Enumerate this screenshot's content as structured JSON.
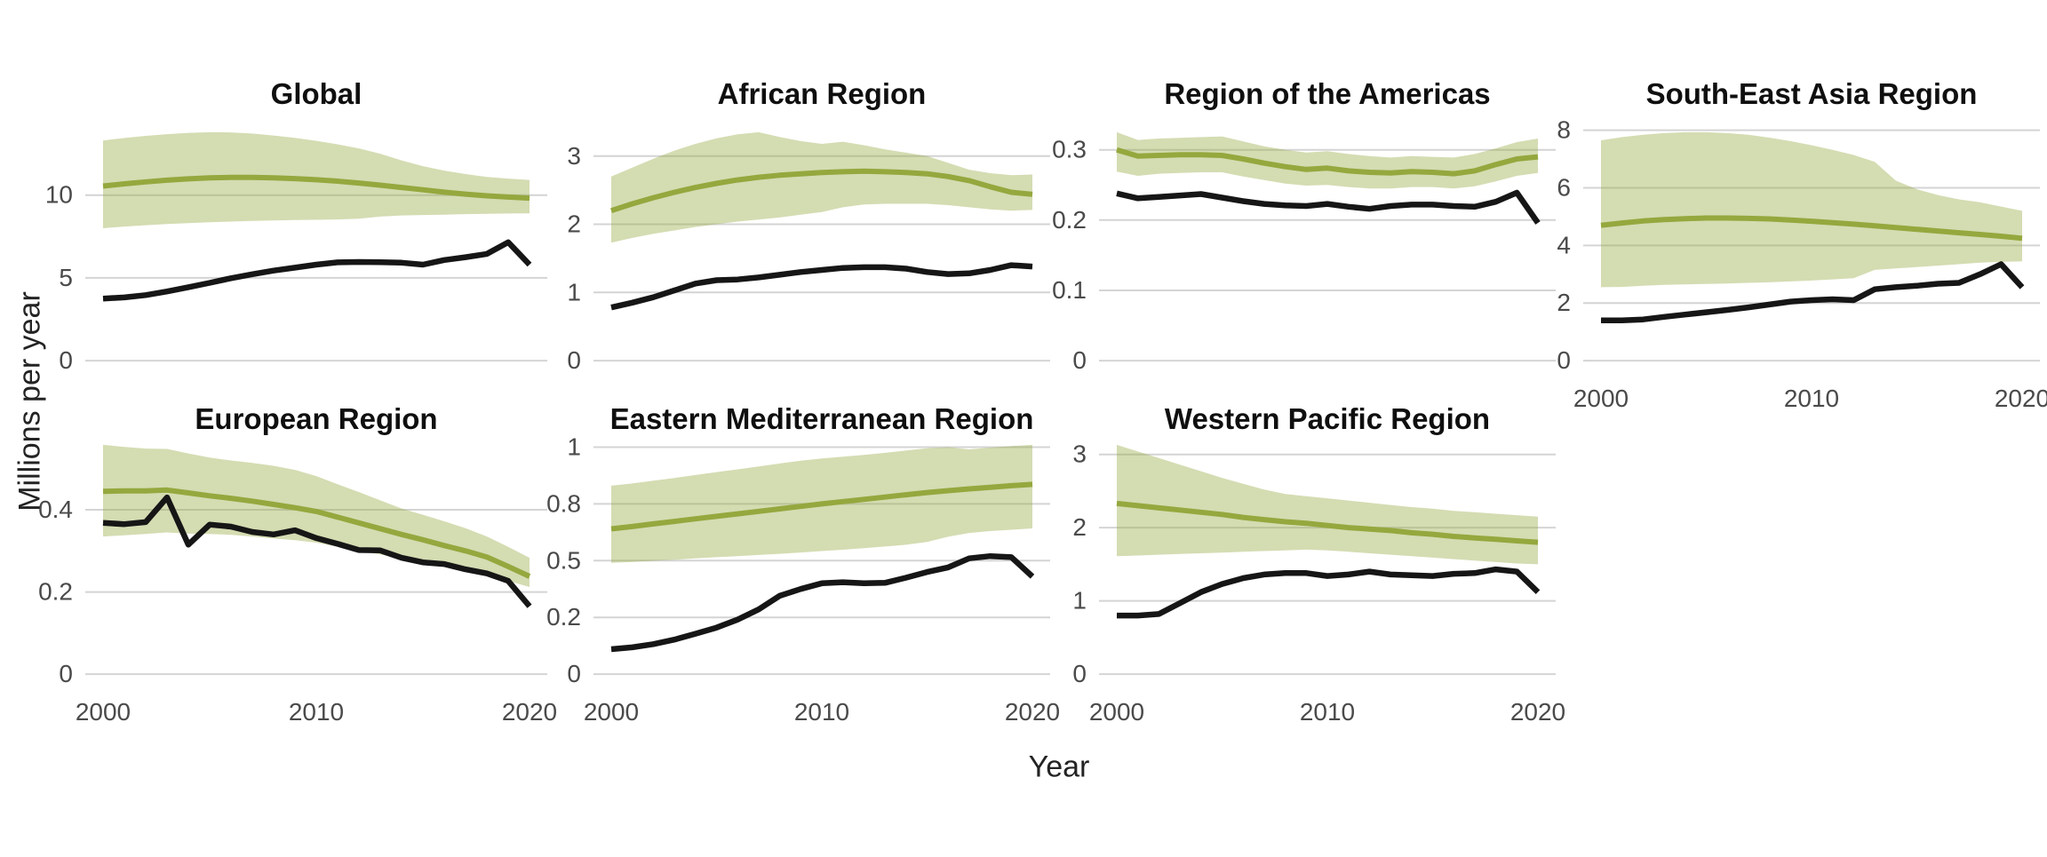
{
  "figure": {
    "ylabel": "Millions per year",
    "xlabel": "Year",
    "colors": {
      "estimate_line": "#94a83e",
      "estimate_band": "rgba(148,168,62,0.40)",
      "observed_line": "#161616",
      "gridline": "#d4d4d4",
      "tick_text": "#4a4a4a",
      "title_text": "#0f0f0f"
    }
  },
  "chart_data": [
    {
      "type": "line",
      "title": "Global",
      "x": [
        2000,
        2001,
        2002,
        2003,
        2004,
        2005,
        2006,
        2007,
        2008,
        2009,
        2010,
        2011,
        2012,
        2013,
        2014,
        2015,
        2016,
        2017,
        2018,
        2019,
        2020
      ],
      "series": [
        {
          "name": "estimate_central",
          "values": [
            10.55,
            10.68,
            10.8,
            10.9,
            10.98,
            11.04,
            11.07,
            11.07,
            11.04,
            11.0,
            10.93,
            10.84,
            10.73,
            10.6,
            10.46,
            10.32,
            10.18,
            10.06,
            9.96,
            9.88,
            9.82
          ]
        },
        {
          "name": "estimate_upper",
          "values": [
            13.3,
            13.45,
            13.58,
            13.68,
            13.76,
            13.8,
            13.79,
            13.72,
            13.6,
            13.46,
            13.28,
            13.07,
            12.82,
            12.5,
            12.1,
            11.75,
            11.48,
            11.27,
            11.1,
            11.0,
            10.92
          ]
        },
        {
          "name": "estimate_lower",
          "values": [
            8.0,
            8.1,
            8.18,
            8.25,
            8.31,
            8.36,
            8.4,
            8.44,
            8.47,
            8.5,
            8.51,
            8.53,
            8.58,
            8.7,
            8.77,
            8.8,
            8.82,
            8.85,
            8.87,
            8.89,
            8.9
          ]
        },
        {
          "name": "observed",
          "values": [
            3.75,
            3.82,
            3.96,
            4.18,
            4.44,
            4.7,
            4.98,
            5.22,
            5.44,
            5.62,
            5.8,
            5.94,
            5.96,
            5.95,
            5.92,
            5.8,
            6.08,
            6.25,
            6.45,
            7.15,
            5.8
          ]
        }
      ],
      "ybreaks": [
        {
          "value": 0,
          "label": "0"
        },
        {
          "value": 5,
          "label": "5"
        },
        {
          "value": 10,
          "label": "10"
        }
      ],
      "ylim": [
        -0.69,
        14.49
      ],
      "xticks": [
        2000,
        2010,
        2020
      ],
      "show_x_labels": false,
      "grid": "horizontal-only",
      "legend": "none"
    },
    {
      "type": "line",
      "title": "African Region",
      "x": [
        2000,
        2001,
        2002,
        2003,
        2004,
        2005,
        2006,
        2007,
        2008,
        2009,
        2010,
        2011,
        2012,
        2013,
        2014,
        2015,
        2016,
        2017,
        2018,
        2019,
        2020
      ],
      "series": [
        {
          "name": "estimate_central",
          "values": [
            2.2,
            2.3,
            2.39,
            2.47,
            2.54,
            2.6,
            2.65,
            2.69,
            2.72,
            2.74,
            2.76,
            2.77,
            2.78,
            2.77,
            2.76,
            2.74,
            2.7,
            2.64,
            2.55,
            2.47,
            2.44
          ]
        },
        {
          "name": "estimate_upper",
          "values": [
            2.7,
            2.83,
            2.96,
            3.08,
            3.18,
            3.26,
            3.32,
            3.35,
            3.28,
            3.22,
            3.18,
            3.21,
            3.16,
            3.1,
            3.05,
            3.0,
            2.9,
            2.8,
            2.75,
            2.72,
            2.73
          ]
        },
        {
          "name": "estimate_lower",
          "values": [
            1.73,
            1.8,
            1.86,
            1.91,
            1.96,
            2.0,
            2.04,
            2.07,
            2.1,
            2.14,
            2.18,
            2.25,
            2.29,
            2.3,
            2.3,
            2.3,
            2.28,
            2.25,
            2.22,
            2.2,
            2.21
          ]
        },
        {
          "name": "observed",
          "values": [
            0.78,
            0.85,
            0.93,
            1.03,
            1.13,
            1.18,
            1.19,
            1.22,
            1.26,
            1.3,
            1.33,
            1.36,
            1.37,
            1.37,
            1.35,
            1.3,
            1.27,
            1.28,
            1.33,
            1.4,
            1.38
          ]
        }
      ],
      "ybreaks": [
        {
          "value": 0,
          "label": "0"
        },
        {
          "value": 1,
          "label": "1"
        },
        {
          "value": 2,
          "label": "2"
        },
        {
          "value": 3,
          "label": "3"
        }
      ],
      "ylim": [
        -0.168,
        3.518
      ],
      "xticks": [
        2000,
        2010,
        2020
      ],
      "show_x_labels": false,
      "grid": "horizontal-only",
      "legend": "none"
    },
    {
      "type": "line",
      "title": "Region of the Americas",
      "x": [
        2000,
        2001,
        2002,
        2003,
        2004,
        2005,
        2006,
        2007,
        2008,
        2009,
        2010,
        2011,
        2012,
        2013,
        2014,
        2015,
        2016,
        2017,
        2018,
        2019,
        2020
      ],
      "series": [
        {
          "name": "estimate_central",
          "values": [
            0.3,
            0.291,
            0.292,
            0.293,
            0.293,
            0.292,
            0.287,
            0.281,
            0.276,
            0.272,
            0.274,
            0.27,
            0.268,
            0.267,
            0.269,
            0.268,
            0.266,
            0.27,
            0.279,
            0.287,
            0.29
          ]
        },
        {
          "name": "estimate_upper",
          "values": [
            0.325,
            0.314,
            0.316,
            0.317,
            0.318,
            0.319,
            0.312,
            0.305,
            0.3,
            0.296,
            0.298,
            0.294,
            0.291,
            0.289,
            0.291,
            0.29,
            0.289,
            0.294,
            0.302,
            0.311,
            0.316
          ]
        },
        {
          "name": "estimate_lower",
          "values": [
            0.269,
            0.263,
            0.266,
            0.267,
            0.268,
            0.268,
            0.262,
            0.257,
            0.252,
            0.249,
            0.25,
            0.247,
            0.245,
            0.245,
            0.247,
            0.247,
            0.245,
            0.248,
            0.255,
            0.263,
            0.267
          ]
        },
        {
          "name": "observed",
          "values": [
            0.238,
            0.231,
            0.233,
            0.235,
            0.237,
            0.232,
            0.227,
            0.223,
            0.221,
            0.22,
            0.223,
            0.219,
            0.216,
            0.22,
            0.222,
            0.222,
            0.22,
            0.219,
            0.226,
            0.239,
            0.196
          ]
        }
      ],
      "ybreaks": [
        {
          "value": 0,
          "label": "0"
        },
        {
          "value": 0.1,
          "label": "0.1"
        },
        {
          "value": 0.2,
          "label": "0.2"
        },
        {
          "value": 0.3,
          "label": "0.3"
        }
      ],
      "ylim": [
        -0.0163,
        0.3413
      ],
      "xticks": [
        2000,
        2010,
        2020
      ],
      "show_x_labels": false,
      "grid": "horizontal-only",
      "legend": "none"
    },
    {
      "type": "line",
      "title": "South-East Asia Region",
      "x": [
        2000,
        2001,
        2002,
        2003,
        2004,
        2005,
        2006,
        2007,
        2008,
        2009,
        2010,
        2011,
        2012,
        2013,
        2014,
        2015,
        2016,
        2017,
        2018,
        2019,
        2020
      ],
      "series": [
        {
          "name": "estimate_central",
          "values": [
            4.7,
            4.78,
            4.85,
            4.9,
            4.93,
            4.95,
            4.95,
            4.94,
            4.92,
            4.88,
            4.84,
            4.79,
            4.74,
            4.68,
            4.62,
            4.56,
            4.5,
            4.44,
            4.38,
            4.32,
            4.25
          ]
        },
        {
          "name": "estimate_upper",
          "values": [
            7.65,
            7.76,
            7.84,
            7.9,
            7.93,
            7.93,
            7.9,
            7.84,
            7.74,
            7.62,
            7.48,
            7.32,
            7.14,
            6.9,
            6.25,
            5.95,
            5.75,
            5.6,
            5.5,
            5.35,
            5.2
          ]
        },
        {
          "name": "estimate_lower",
          "values": [
            2.55,
            2.56,
            2.6,
            2.63,
            2.65,
            2.66,
            2.68,
            2.7,
            2.72,
            2.75,
            2.78,
            2.82,
            2.86,
            3.15,
            3.2,
            3.25,
            3.3,
            3.35,
            3.4,
            3.43,
            3.45
          ]
        },
        {
          "name": "observed",
          "values": [
            1.4,
            1.4,
            1.43,
            1.52,
            1.6,
            1.68,
            1.76,
            1.85,
            1.95,
            2.05,
            2.1,
            2.13,
            2.1,
            2.48,
            2.55,
            2.6,
            2.67,
            2.7,
            3.0,
            3.35,
            2.55
          ]
        }
      ],
      "ybreaks": [
        {
          "value": 0,
          "label": "0"
        },
        {
          "value": 2,
          "label": "2"
        },
        {
          "value": 4,
          "label": "4"
        },
        {
          "value": 6,
          "label": "6"
        },
        {
          "value": 8,
          "label": "8"
        }
      ],
      "ylim": [
        -0.397,
        8.327
      ],
      "xticks": [
        2000,
        2010,
        2020
      ],
      "show_x_labels": true,
      "grid": "horizontal-only",
      "legend": "none"
    },
    {
      "type": "line",
      "title": "European Region",
      "x": [
        2000,
        2001,
        2002,
        2003,
        2004,
        2005,
        2006,
        2007,
        2008,
        2009,
        2010,
        2011,
        2012,
        2013,
        2014,
        2015,
        2016,
        2017,
        2018,
        2019,
        2020
      ],
      "series": [
        {
          "name": "estimate_central",
          "values": [
            0.445,
            0.446,
            0.446,
            0.448,
            0.441,
            0.434,
            0.428,
            0.421,
            0.413,
            0.405,
            0.396,
            0.382,
            0.368,
            0.354,
            0.34,
            0.327,
            0.313,
            0.3,
            0.285,
            0.262,
            0.238
          ]
        },
        {
          "name": "estimate_upper",
          "values": [
            0.558,
            0.553,
            0.549,
            0.548,
            0.537,
            0.527,
            0.52,
            0.514,
            0.507,
            0.497,
            0.482,
            0.462,
            0.443,
            0.423,
            0.403,
            0.388,
            0.372,
            0.355,
            0.335,
            0.31,
            0.283
          ]
        },
        {
          "name": "estimate_lower",
          "values": [
            0.335,
            0.338,
            0.341,
            0.345,
            0.342,
            0.341,
            0.339,
            0.335,
            0.33,
            0.326,
            0.32,
            0.31,
            0.3,
            0.291,
            0.281,
            0.272,
            0.262,
            0.252,
            0.24,
            0.227,
            0.212
          ]
        },
        {
          "name": "observed",
          "values": [
            0.368,
            0.365,
            0.37,
            0.43,
            0.315,
            0.364,
            0.359,
            0.346,
            0.34,
            0.35,
            0.331,
            0.317,
            0.302,
            0.301,
            0.283,
            0.272,
            0.268,
            0.255,
            0.245,
            0.227,
            0.165
          ]
        }
      ],
      "ybreaks": [
        {
          "value": 0,
          "label": "0"
        },
        {
          "value": 0.2,
          "label": "0.2"
        },
        {
          "value": 0.4,
          "label": "0.4"
        }
      ],
      "ylim": [
        -0.0279,
        0.5859
      ],
      "xticks": [
        2000,
        2010,
        2020
      ],
      "show_x_labels": true,
      "grid": "horizontal-only",
      "legend": "none"
    },
    {
      "type": "line",
      "title": "Eastern Mediterranean Region",
      "x": [
        2000,
        2001,
        2002,
        2003,
        2004,
        2005,
        2006,
        2007,
        2008,
        2009,
        2010,
        2011,
        2012,
        2013,
        2014,
        2015,
        2016,
        2017,
        2018,
        2019,
        2020
      ],
      "series": [
        {
          "name": "estimate_central",
          "values": [
            0.64,
            0.65,
            0.662,
            0.673,
            0.684,
            0.695,
            0.706,
            0.717,
            0.728,
            0.739,
            0.75,
            0.76,
            0.77,
            0.78,
            0.79,
            0.8,
            0.808,
            0.816,
            0.823,
            0.83,
            0.836
          ]
        },
        {
          "name": "estimate_upper",
          "values": [
            0.83,
            0.84,
            0.852,
            0.864,
            0.877,
            0.89,
            0.902,
            0.915,
            0.928,
            0.94,
            0.95,
            0.958,
            0.966,
            0.975,
            0.985,
            0.995,
            1.0,
            0.99,
            0.998,
            1.005,
            1.01
          ]
        },
        {
          "name": "estimate_lower",
          "values": [
            0.49,
            0.494,
            0.499,
            0.504,
            0.51,
            0.515,
            0.52,
            0.525,
            0.53,
            0.536,
            0.542,
            0.548,
            0.555,
            0.562,
            0.57,
            0.582,
            0.605,
            0.622,
            0.63,
            0.636,
            0.642
          ]
        },
        {
          "name": "observed",
          "values": [
            0.11,
            0.118,
            0.132,
            0.152,
            0.178,
            0.205,
            0.24,
            0.285,
            0.345,
            0.375,
            0.4,
            0.405,
            0.4,
            0.402,
            0.425,
            0.45,
            0.47,
            0.51,
            0.52,
            0.515,
            0.43
          ]
        }
      ],
      "ybreaks": [
        {
          "value": 0,
          "label": "0"
        },
        {
          "value": 0.25,
          "label": "0.2"
        },
        {
          "value": 0.5,
          "label": "0.5"
        },
        {
          "value": 0.75,
          "label": "0.8"
        },
        {
          "value": 1,
          "label": "1"
        }
      ],
      "ylim": [
        -0.0505,
        1.0605
      ],
      "xticks": [
        2000,
        2010,
        2020
      ],
      "show_x_labels": true,
      "grid": "horizontal-only",
      "legend": "none"
    },
    {
      "type": "line",
      "title": "Western Pacific Region",
      "x": [
        2000,
        2001,
        2002,
        2003,
        2004,
        2005,
        2006,
        2007,
        2008,
        2009,
        2010,
        2011,
        2012,
        2013,
        2014,
        2015,
        2016,
        2017,
        2018,
        2019,
        2020
      ],
      "series": [
        {
          "name": "estimate_central",
          "values": [
            2.33,
            2.3,
            2.27,
            2.24,
            2.21,
            2.18,
            2.14,
            2.11,
            2.08,
            2.06,
            2.03,
            2.0,
            1.98,
            1.96,
            1.93,
            1.91,
            1.88,
            1.86,
            1.84,
            1.82,
            1.8
          ]
        },
        {
          "name": "estimate_upper",
          "values": [
            3.13,
            3.04,
            2.95,
            2.86,
            2.77,
            2.68,
            2.6,
            2.52,
            2.46,
            2.43,
            2.4,
            2.37,
            2.34,
            2.31,
            2.28,
            2.26,
            2.23,
            2.21,
            2.19,
            2.17,
            2.15
          ]
        },
        {
          "name": "estimate_lower",
          "values": [
            1.61,
            1.62,
            1.63,
            1.64,
            1.65,
            1.66,
            1.67,
            1.68,
            1.69,
            1.7,
            1.69,
            1.67,
            1.65,
            1.63,
            1.61,
            1.59,
            1.57,
            1.55,
            1.53,
            1.51,
            1.5
          ]
        },
        {
          "name": "observed",
          "values": [
            0.8,
            0.8,
            0.82,
            0.97,
            1.12,
            1.23,
            1.31,
            1.36,
            1.38,
            1.38,
            1.34,
            1.36,
            1.4,
            1.36,
            1.35,
            1.34,
            1.37,
            1.38,
            1.43,
            1.4,
            1.12
          ]
        }
      ],
      "ybreaks": [
        {
          "value": 0,
          "label": "0"
        },
        {
          "value": 1,
          "label": "1"
        },
        {
          "value": 2,
          "label": "2"
        },
        {
          "value": 3,
          "label": "3"
        }
      ],
      "ylim": [
        -0.157,
        3.287
      ],
      "xticks": [
        2000,
        2010,
        2020
      ],
      "show_x_labels": true,
      "grid": "horizontal-only",
      "legend": "none"
    }
  ]
}
